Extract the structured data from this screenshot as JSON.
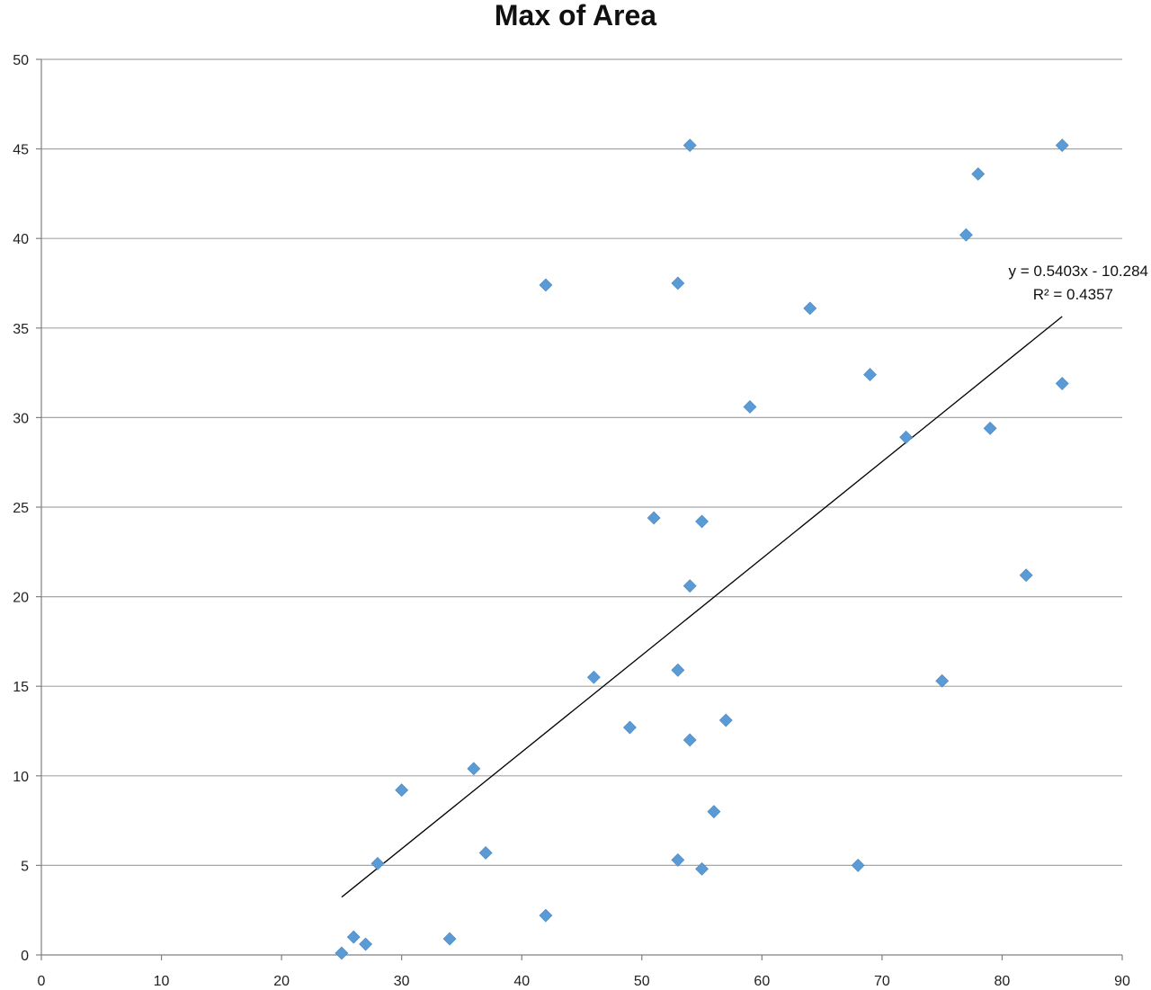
{
  "chart_data": {
    "type": "scatter",
    "title": "Max of Area",
    "xlabel": "",
    "ylabel": "",
    "xlim": [
      0,
      90
    ],
    "ylim": [
      0,
      50
    ],
    "x_ticks": [
      0,
      10,
      20,
      30,
      40,
      50,
      60,
      70,
      80,
      90
    ],
    "y_ticks": [
      0,
      5,
      10,
      15,
      20,
      25,
      30,
      35,
      40,
      45,
      50
    ],
    "grid": "horizontal",
    "legend": "none",
    "marker": "diamond",
    "colors": {
      "marker": "#5b9bd5",
      "gridline": "#a6a6a6",
      "axis": "#808080",
      "trendline": "#000000"
    },
    "series": [
      {
        "points": [
          {
            "x": 25,
            "y": 0.1
          },
          {
            "x": 26,
            "y": 1.0
          },
          {
            "x": 27,
            "y": 0.6
          },
          {
            "x": 28,
            "y": 5.1
          },
          {
            "x": 30,
            "y": 9.2
          },
          {
            "x": 34,
            "y": 0.9
          },
          {
            "x": 36,
            "y": 10.4
          },
          {
            "x": 37,
            "y": 5.7
          },
          {
            "x": 42,
            "y": 2.2
          },
          {
            "x": 42,
            "y": 37.4
          },
          {
            "x": 46,
            "y": 15.5
          },
          {
            "x": 49,
            "y": 12.7
          },
          {
            "x": 51,
            "y": 24.4
          },
          {
            "x": 53,
            "y": 15.9
          },
          {
            "x": 53,
            "y": 37.5
          },
          {
            "x": 53,
            "y": 5.3
          },
          {
            "x": 54,
            "y": 45.2
          },
          {
            "x": 54,
            "y": 20.6
          },
          {
            "x": 54,
            "y": 12.0
          },
          {
            "x": 55,
            "y": 24.2
          },
          {
            "x": 55,
            "y": 4.8
          },
          {
            "x": 56,
            "y": 8.0
          },
          {
            "x": 57,
            "y": 13.1
          },
          {
            "x": 59,
            "y": 30.6
          },
          {
            "x": 64,
            "y": 36.1
          },
          {
            "x": 68,
            "y": 5.0
          },
          {
            "x": 69,
            "y": 32.4
          },
          {
            "x": 72,
            "y": 28.9
          },
          {
            "x": 75,
            "y": 15.3
          },
          {
            "x": 77,
            "y": 40.2
          },
          {
            "x": 78,
            "y": 43.6
          },
          {
            "x": 79,
            "y": 29.4
          },
          {
            "x": 82,
            "y": 21.2
          },
          {
            "x": 85,
            "y": 45.2
          },
          {
            "x": 85,
            "y": 31.9
          }
        ]
      }
    ],
    "trendline": {
      "type": "linear",
      "slope": 0.5403,
      "intercept": -10.284,
      "x_range": [
        25,
        85
      ],
      "equation": "y = 0.5403x - 10.284",
      "r_squared": "R² = 0.4357"
    }
  }
}
